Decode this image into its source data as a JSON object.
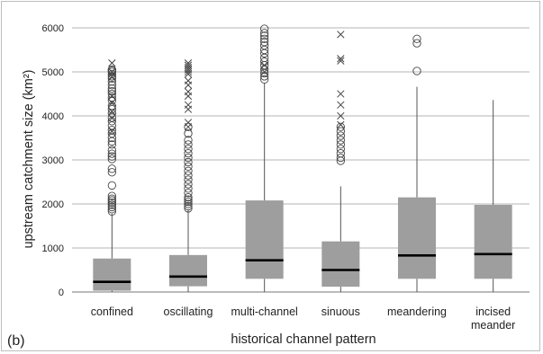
{
  "chart_data": {
    "type": "boxplot",
    "panel_label": "(b)",
    "xlabel": "historical channel pattern",
    "ylabel": "upstream catchment size (km²)",
    "ylim": [
      0,
      6000
    ],
    "yticks": [
      0,
      1000,
      2000,
      3000,
      4000,
      5000,
      6000
    ],
    "grid": true,
    "colors": {
      "box": "#9e9e9e",
      "median": "#000000",
      "grid": "#b5b5b5",
      "whisker": "#555555"
    },
    "categories": [
      {
        "label": [
          "confined"
        ],
        "q1": 30,
        "median": 230,
        "q3": 760,
        "whisker_low": 0,
        "whisker_high": 1780,
        "outliers_circle": [
          1830,
          1880,
          1930,
          1980,
          2030,
          2080,
          2120,
          2180,
          2420,
          2720,
          2800,
          3020,
          3080,
          3140,
          3220,
          3350,
          3420,
          3500,
          3600,
          3680,
          3780,
          3880,
          3960,
          4060,
          4150,
          4230,
          4350,
          4420,
          4500,
          4560,
          4620,
          4700,
          4780,
          4850,
          4900,
          4950,
          5000,
          5030,
          5050
        ],
        "outliers_cross": [
          3650,
          3950,
          4100,
          4300,
          4450,
          4880,
          5000,
          5200
        ]
      },
      {
        "label": [
          "oscillating"
        ],
        "q1": 130,
        "median": 350,
        "q3": 840,
        "whisker_low": 0,
        "whisker_high": 1860,
        "outliers_circle": [
          1900,
          1950,
          2000,
          2050,
          2100,
          2150,
          2250,
          2350,
          2450,
          2550,
          2650,
          2750,
          2850,
          2950,
          3050,
          3150,
          3250,
          3350,
          3450,
          3600,
          3750
        ],
        "outliers_cross": [
          3750,
          3850,
          4150,
          4250,
          4450,
          4550,
          4700,
          4800,
          4950,
          5000,
          5050,
          5100,
          5150,
          5200
        ]
      },
      {
        "label": [
          "multi-channel"
        ],
        "q1": 300,
        "median": 720,
        "q3": 2080,
        "whisker_low": 0,
        "whisker_high": 4750,
        "outliers_circle": [
          4830,
          4900,
          4970,
          5050,
          5150,
          5230,
          5320,
          5420,
          5500,
          5600,
          5680,
          5750,
          5820,
          5880,
          5980
        ],
        "outliers_cross": [
          5000,
          5150
        ]
      },
      {
        "label": [
          "sinuous"
        ],
        "q1": 120,
        "median": 500,
        "q3": 1150,
        "whisker_low": 0,
        "whisker_high": 2400,
        "outliers_circle": [
          2980,
          3050,
          3150,
          3250,
          3350,
          3450,
          3550,
          3650,
          3750
        ],
        "outliers_cross": [
          3800,
          4000,
          4250,
          4500,
          5250,
          5300,
          5850
        ]
      },
      {
        "label": [
          "meandering"
        ],
        "q1": 300,
        "median": 830,
        "q3": 2150,
        "whisker_low": 0,
        "whisker_high": 4660,
        "outliers_circle": [
          5020,
          5650,
          5750
        ],
        "outliers_cross": []
      },
      {
        "label": [
          "incised",
          "meander"
        ],
        "q1": 300,
        "median": 860,
        "q3": 1980,
        "whisker_low": 0,
        "whisker_high": 4360,
        "outliers_circle": [],
        "outliers_cross": []
      }
    ]
  }
}
